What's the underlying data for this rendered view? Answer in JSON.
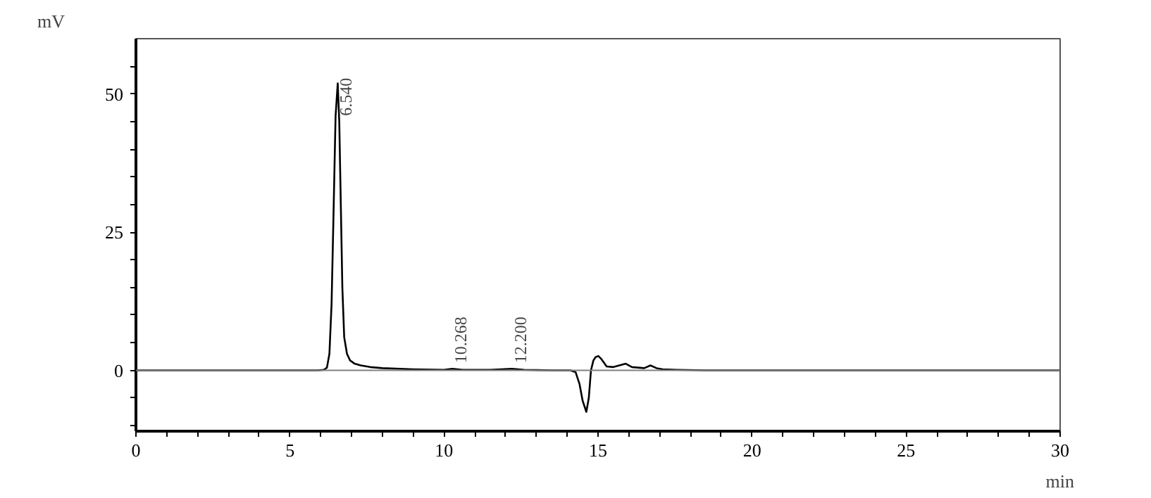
{
  "chart_data": {
    "type": "line",
    "xlabel": "min",
    "ylabel": "mV",
    "series": [
      {
        "color": "#000000",
        "x": [
          0,
          4,
          5.9,
          6.1,
          6.2,
          6.28,
          6.35,
          6.42,
          6.48,
          6.55,
          6.6,
          6.65,
          6.7,
          6.76,
          6.85,
          6.95,
          7.1,
          7.3,
          7.6,
          8,
          9,
          10,
          10.27,
          10.6,
          11.5,
          12.2,
          12.6,
          13.5,
          14.1,
          14.27,
          14.4,
          14.5,
          14.62,
          14.7,
          14.77,
          14.85,
          14.92,
          15.01,
          15.1,
          15.28,
          15.5,
          15.9,
          16.1,
          16.3,
          16.5,
          16.7,
          16.9,
          17.1,
          17.55,
          18.5,
          30
        ],
        "values": [
          0,
          0,
          0,
          0.1,
          0.5,
          3,
          12,
          30,
          46,
          51.9,
          45,
          30,
          15,
          6,
          3,
          1.8,
          1.2,
          0.9,
          0.6,
          0.4,
          0.2,
          0.1,
          0.3,
          0.1,
          0.1,
          0.3,
          0.1,
          0,
          0,
          -0.3,
          -2.5,
          -5.5,
          -7.5,
          -5,
          0,
          1.8,
          2.4,
          2.6,
          2.1,
          0.7,
          0.6,
          1.2,
          0.6,
          0.5,
          0.4,
          0.9,
          0.4,
          0.2,
          0.1,
          0,
          0
        ]
      }
    ],
    "annotations": [
      {
        "text": "6.540",
        "x": 6.54,
        "y": 51.9
      },
      {
        "text": "10.268",
        "x": 10.268,
        "y": 0.3
      },
      {
        "text": "12.200",
        "x": 12.2,
        "y": 0.3
      }
    ],
    "xlim": [
      0,
      30
    ],
    "ylim": [
      -11,
      60
    ],
    "xticks": [
      0,
      {
        "value": 1,
        "label": null
      },
      {
        "value": 2,
        "label": null
      },
      {
        "value": 3,
        "label": null
      },
      {
        "value": 4,
        "label": null
      },
      5,
      {
        "value": 6,
        "label": null
      },
      {
        "value": 7,
        "label": null
      },
      {
        "value": 8,
        "label": null
      },
      {
        "value": 9,
        "label": null
      },
      10,
      {
        "value": 11,
        "label": null
      },
      {
        "value": 12,
        "label": null
      },
      {
        "value": 13,
        "label": null
      },
      {
        "value": 14,
        "label": null
      },
      15,
      {
        "value": 16,
        "label": null
      },
      {
        "value": 17,
        "label": null
      },
      {
        "value": 18,
        "label": null
      },
      {
        "value": 19,
        "label": null
      },
      20,
      {
        "value": 21,
        "label": null
      },
      {
        "value": 22,
        "label": null
      },
      {
        "value": 23,
        "label": null
      },
      {
        "value": 24,
        "label": null
      },
      25,
      {
        "value": 26,
        "label": null
      },
      {
        "value": 27,
        "label": null
      },
      {
        "value": 28,
        "label": null
      },
      {
        "value": 29,
        "label": null
      },
      30
    ],
    "yticks": [
      {
        "value": -10,
        "label": null
      },
      {
        "value": -5,
        "label": null
      },
      0,
      {
        "value": 5,
        "label": null
      },
      {
        "value": 10,
        "label": null
      },
      {
        "value": 15,
        "label": null
      },
      {
        "value": 20,
        "label": null
      },
      25,
      {
        "value": 30,
        "label": null
      },
      {
        "value": 35,
        "label": null
      },
      {
        "value": 40,
        "label": null
      },
      {
        "value": 45,
        "label": null
      },
      50,
      {
        "value": 55,
        "label": null
      }
    ],
    "ref_lines": [
      {
        "axis": "y",
        "value": 0,
        "color": "#808080"
      }
    ],
    "grid": false
  }
}
